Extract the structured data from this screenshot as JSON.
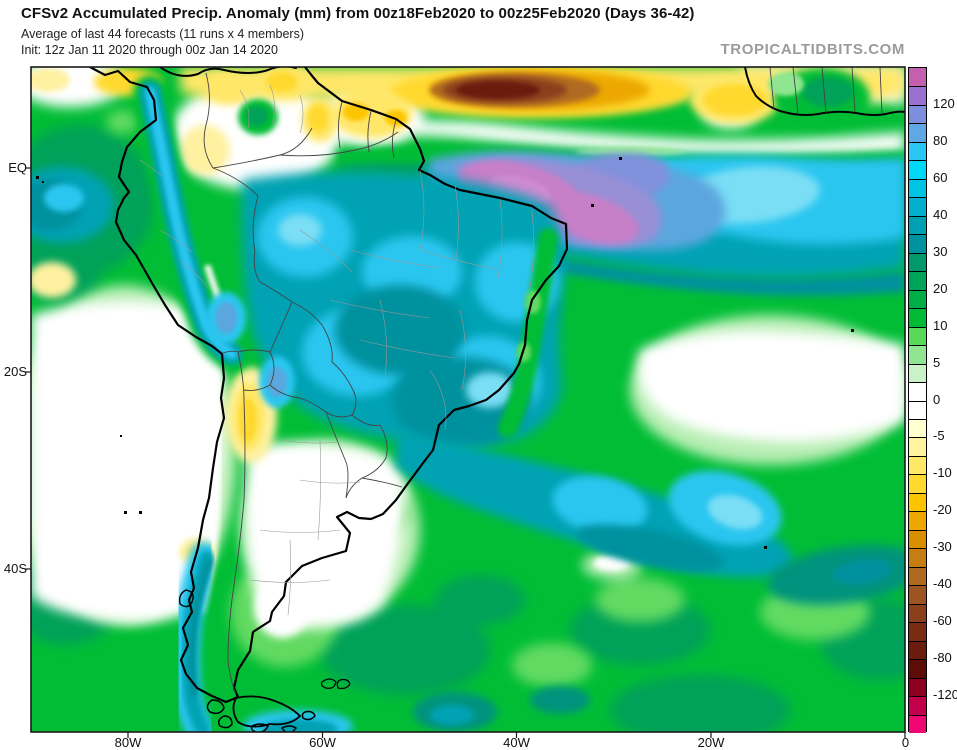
{
  "header": {
    "title": "CFSv2 Accumulated Precip. Anomaly (mm) from 00z18Feb2020 to 00z25Feb2020 (Days 36-42)",
    "subtitle": "Average of last 44 forecasts (11 runs x 4 members)",
    "init": "Init: 12z Jan 11 2020 through 00z Jan 14 2020",
    "watermark": "TROPICALTIDBITS.COM"
  },
  "map": {
    "x_axis": {
      "labels": [
        "80W",
        "60W",
        "40W",
        "20W",
        "0"
      ]
    },
    "y_axis": {
      "labels": [
        "EQ",
        "20S",
        "40S"
      ]
    }
  },
  "colorbar": {
    "unit": "mm",
    "labels": [
      "120",
      "80",
      "60",
      "40",
      "30",
      "20",
      "10",
      "5",
      "0",
      "-5",
      "-10",
      "-20",
      "-30",
      "-40",
      "-60",
      "-80",
      "-120"
    ],
    "cell_colors": [
      "#c55fae",
      "#9a70d0",
      "#7e8ede",
      "#5fa8e4",
      "#2cc6f2",
      "#00d8f8",
      "#00c4e4",
      "#00b0cc",
      "#00a0b4",
      "#00929e",
      "#00996e",
      "#00a35a",
      "#00ad46",
      "#00bb33",
      "#59d859",
      "#90e690",
      "#c9f2c9",
      "#ffffff",
      "#ffffff",
      "#ffffd0",
      "#fff3a0",
      "#ffe767",
      "#ffd92e",
      "#fdc500",
      "#eca800",
      "#d99000",
      "#c57d14",
      "#b06a20",
      "#9c5520",
      "#8a401a",
      "#7a2c12",
      "#6b1c0c",
      "#5c0d05",
      "#8c0020",
      "#c2004c",
      "#ef0873"
    ]
  }
}
